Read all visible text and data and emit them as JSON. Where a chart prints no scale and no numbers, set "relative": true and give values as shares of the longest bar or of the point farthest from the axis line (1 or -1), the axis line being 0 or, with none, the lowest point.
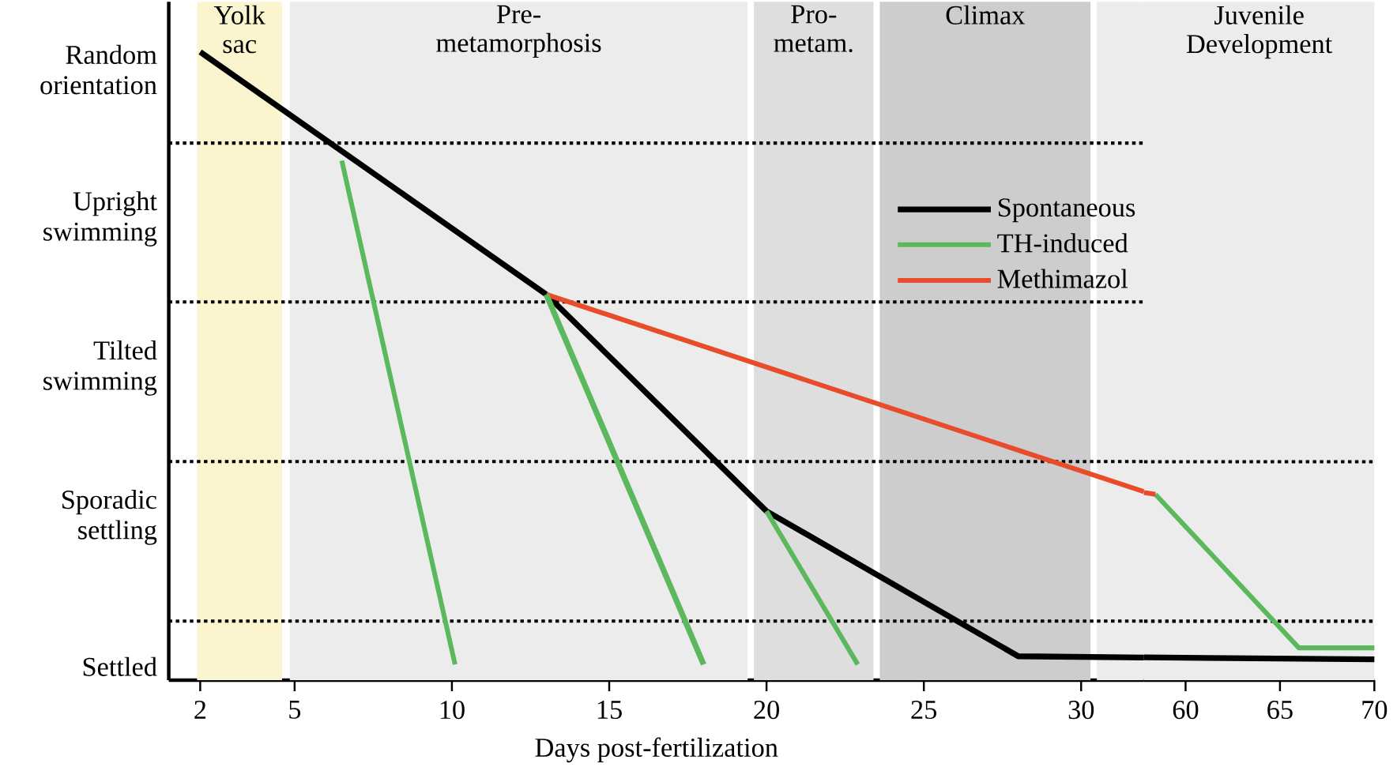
{
  "chart_data": [
    {
      "type": "line",
      "relative": true,
      "xlabel": "Days post-fertilization",
      "xlim": [
        1,
        32
      ],
      "xticks": [
        2,
        5,
        10,
        15,
        20,
        25,
        30
      ],
      "series": [
        {
          "name": "Spontaneous",
          "color": "#000000",
          "x": [
            2,
            13,
            20,
            28,
            32
          ],
          "values": [
            1,
            0.614,
            0.269,
            0.038,
            0.036
          ]
        },
        {
          "name": "TH-induced",
          "color": "#5cb85c",
          "x": [
            6.5,
            10.1
          ],
          "values": [
            0.827,
            0.025
          ]
        },
        {
          "name": "Methimazol",
          "color": "#e84c2a",
          "x": [
            13,
            32
          ],
          "values": [
            0.614,
            0.3
          ]
        },
        {
          "color": "#5cb85c",
          "x": [
            13,
            18
          ],
          "values": [
            0.614,
            0.025
          ]
        },
        {
          "color": "#5cb85c",
          "x": [
            20,
            22.9
          ],
          "values": [
            0.269,
            0.025
          ]
        }
      ],
      "bands": [
        {
          "axis": "x",
          "from": 1.9,
          "to": 4.6,
          "label": "Yolk sac",
          "color": "#faf5cf"
        },
        {
          "axis": "x",
          "from": 4.85,
          "to": 19.4,
          "label": "Pre-metamorphosis",
          "color": "#ececec"
        },
        {
          "axis": "x",
          "from": 19.6,
          "to": 23.4,
          "label": "Pro-metam.",
          "color": "#dedede"
        },
        {
          "axis": "x",
          "from": 23.6,
          "to": 30.3,
          "label": "Climax",
          "color": "#cdcdcd"
        },
        {
          "axis": "x",
          "from": 30.5,
          "to": 32,
          "color": "#ececec"
        }
      ],
      "ref_lines": [
        {
          "axis": "y",
          "value": 0.855,
          "line_style": "dotted"
        },
        {
          "axis": "y",
          "value": 0.602,
          "line_style": "dotted"
        },
        {
          "axis": "y",
          "value": 0.348,
          "line_style": "dotted"
        },
        {
          "axis": "y",
          "value": 0.094,
          "line_style": "dotted"
        }
      ],
      "annotations": [
        "Random orientation",
        "Upright swimming",
        "Tilted swimming",
        "Sporadic settling",
        "Settled"
      ],
      "legend": "top right"
    },
    {
      "type": "line",
      "relative": true,
      "xlim": [
        57.8,
        70
      ],
      "xticks": [
        60,
        65,
        70
      ],
      "tick_labels": "x",
      "series": [
        {
          "color": "#000000",
          "x": [
            57.8,
            70
          ],
          "values": [
            0.121,
            0.111
          ]
        },
        {
          "color": "#5cb85c",
          "x": [
            58.4,
            66,
            70
          ],
          "values": [
            0.99,
            0.172,
            0.172
          ]
        },
        {
          "color": "#e84c2a",
          "x": [
            57.8,
            58.4
          ],
          "values": [
            1,
            0.99
          ]
        }
      ],
      "bands": [
        {
          "axis": "x",
          "from": 57.8,
          "to": 70,
          "label": "Juvenile Development",
          "color": "#ececec"
        }
      ],
      "ref_lines": [
        {
          "axis": "y",
          "value": 1.164,
          "line_style": "dotted"
        },
        {
          "axis": "y",
          "value": 0.314,
          "line_style": "dotted"
        }
      ]
    }
  ]
}
